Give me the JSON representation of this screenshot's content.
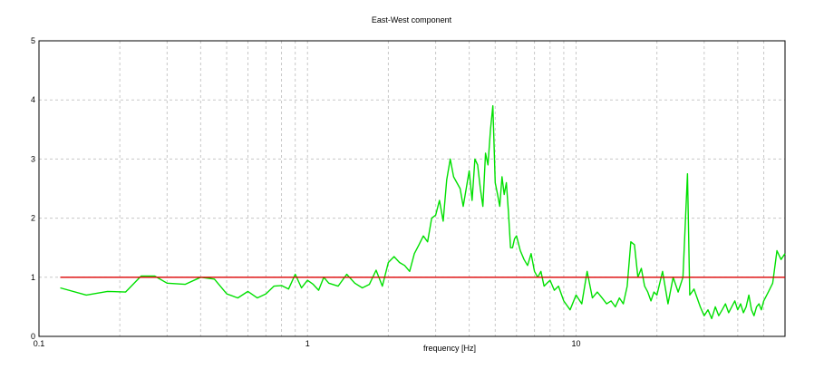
{
  "chart_data": {
    "type": "line",
    "title": "East-West component",
    "xlabel": "frequency [Hz]",
    "ylabel": "",
    "x_scale": "log",
    "xlim": [
      0.1,
      60
    ],
    "ylim": [
      0,
      5
    ],
    "x_ticks": [
      0.1,
      1,
      10
    ],
    "x_tick_labels": [
      "0.1",
      "1",
      "10"
    ],
    "y_ticks": [
      0,
      1,
      2,
      3,
      4,
      5
    ],
    "y_tick_labels": [
      "0",
      "1",
      "2",
      "3",
      "4",
      "5"
    ],
    "grid": true,
    "series": [
      {
        "color": "#00e000",
        "x": [
          0.12,
          0.15,
          0.18,
          0.21,
          0.24,
          0.27,
          0.3,
          0.35,
          0.4,
          0.45,
          0.5,
          0.55,
          0.6,
          0.65,
          0.7,
          0.75,
          0.8,
          0.85,
          0.9,
          0.95,
          1.0,
          1.05,
          1.1,
          1.15,
          1.2,
          1.3,
          1.4,
          1.5,
          1.6,
          1.7,
          1.8,
          1.9,
          2.0,
          2.1,
          2.2,
          2.3,
          2.4,
          2.5,
          2.6,
          2.7,
          2.8,
          2.9,
          3.0,
          3.1,
          3.2,
          3.3,
          3.4,
          3.5,
          3.6,
          3.7,
          3.8,
          3.9,
          4.0,
          4.1,
          4.2,
          4.3,
          4.4,
          4.5,
          4.6,
          4.7,
          4.8,
          4.9,
          5.0,
          5.1,
          5.2,
          5.3,
          5.4,
          5.5,
          5.6,
          5.7,
          5.8,
          5.9,
          6.0,
          6.2,
          6.4,
          6.6,
          6.8,
          7.0,
          7.2,
          7.4,
          7.6,
          7.8,
          8.0,
          8.3,
          8.6,
          9.0,
          9.5,
          10.0,
          10.5,
          11.0,
          11.5,
          12.0,
          12.5,
          13.0,
          13.5,
          14.0,
          14.5,
          15.0,
          15.5,
          16.0,
          16.5,
          17.0,
          17.5,
          18.0,
          18.5,
          19.0,
          19.5,
          20.0,
          21.0,
          22.0,
          23.0,
          24.0,
          25.0,
          26.0,
          26.5,
          27.0,
          27.5,
          28.0,
          29.0,
          30.0,
          31.0,
          32.0,
          33.0,
          34.0,
          35.0,
          36.0,
          37.0,
          38.0,
          39.0,
          40.0,
          41.0,
          42.0,
          43.0,
          44.0,
          45.0,
          46.0,
          47.0,
          48.0,
          49.0,
          50.0,
          52.0,
          54.0,
          56.0,
          58.0,
          60.0
        ],
        "values": [
          0.82,
          0.7,
          0.76,
          0.75,
          1.02,
          1.02,
          0.9,
          0.88,
          1.0,
          0.97,
          0.72,
          0.65,
          0.76,
          0.65,
          0.72,
          0.85,
          0.86,
          0.8,
          1.05,
          0.82,
          0.95,
          0.88,
          0.78,
          1.0,
          0.9,
          0.85,
          1.05,
          0.9,
          0.82,
          0.88,
          1.12,
          0.85,
          1.25,
          1.35,
          1.25,
          1.2,
          1.1,
          1.4,
          1.55,
          1.7,
          1.6,
          2.0,
          2.05,
          2.3,
          1.95,
          2.65,
          3.0,
          2.7,
          2.6,
          2.5,
          2.2,
          2.5,
          2.8,
          2.3,
          3.0,
          2.9,
          2.5,
          2.2,
          3.1,
          2.9,
          3.5,
          3.9,
          2.6,
          2.4,
          2.2,
          2.7,
          2.4,
          2.6,
          2.1,
          1.5,
          1.5,
          1.65,
          1.7,
          1.45,
          1.3,
          1.2,
          1.4,
          1.1,
          1.0,
          1.1,
          0.85,
          0.9,
          0.95,
          0.78,
          0.85,
          0.6,
          0.45,
          0.7,
          0.55,
          1.1,
          0.65,
          0.75,
          0.65,
          0.55,
          0.6,
          0.5,
          0.65,
          0.55,
          0.85,
          1.6,
          1.55,
          1.0,
          1.15,
          0.85,
          0.75,
          0.6,
          0.75,
          0.7,
          1.1,
          0.55,
          1.0,
          0.75,
          1.0,
          2.75,
          0.7,
          0.75,
          0.8,
          0.7,
          0.5,
          0.35,
          0.45,
          0.3,
          0.5,
          0.35,
          0.45,
          0.55,
          0.4,
          0.5,
          0.6,
          0.45,
          0.55,
          0.4,
          0.5,
          0.7,
          0.45,
          0.35,
          0.5,
          0.55,
          0.45,
          0.6,
          0.75,
          0.9,
          1.45,
          1.3,
          1.4
        ]
      },
      {
        "color": "#dd0000",
        "x": [
          0.12,
          60
        ],
        "values": [
          1.0,
          1.0
        ]
      }
    ]
  }
}
